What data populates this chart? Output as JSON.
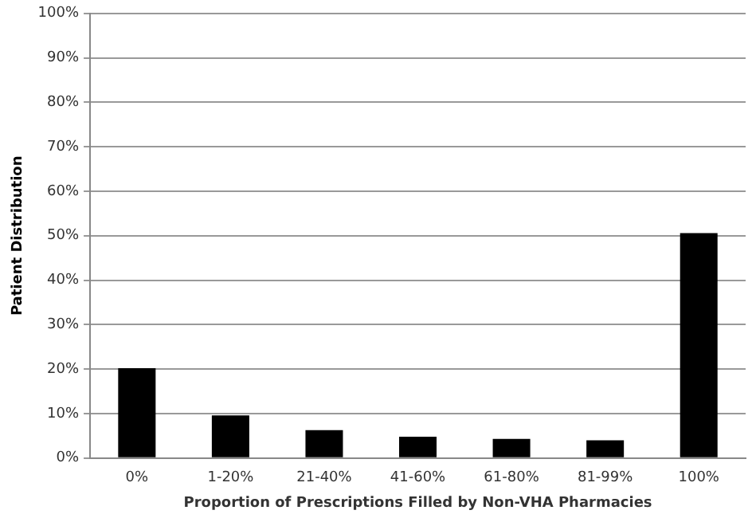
{
  "chart_data": {
    "type": "bar",
    "xlabel": "Proportion of Prescriptions Filled by Non-VHA Pharmacies",
    "ylabel": "Patient Distribution",
    "categories": [
      "0%",
      "1-20%",
      "21-40%",
      "41-60%",
      "61-80%",
      "81-99%",
      "100%"
    ],
    "values": [
      20.2,
      9.6,
      6.3,
      4.8,
      4.3,
      4.0,
      50.6
    ],
    "color": "#000000",
    "ylim": [
      0,
      100
    ],
    "yticks": [
      {
        "value": 0,
        "label": "0%"
      },
      {
        "value": 10,
        "label": "10%"
      },
      {
        "value": 20,
        "label": "20%"
      },
      {
        "value": 30,
        "label": "30%"
      },
      {
        "value": 40,
        "label": "40%"
      },
      {
        "value": 50,
        "label": "50%"
      },
      {
        "value": 60,
        "label": "60%"
      },
      {
        "value": 70,
        "label": "70%"
      },
      {
        "value": 80,
        "label": "80%"
      },
      {
        "value": 90,
        "label": "90%"
      },
      {
        "value": 100,
        "label": "100%"
      }
    ],
    "grid": "y",
    "legend": false
  }
}
